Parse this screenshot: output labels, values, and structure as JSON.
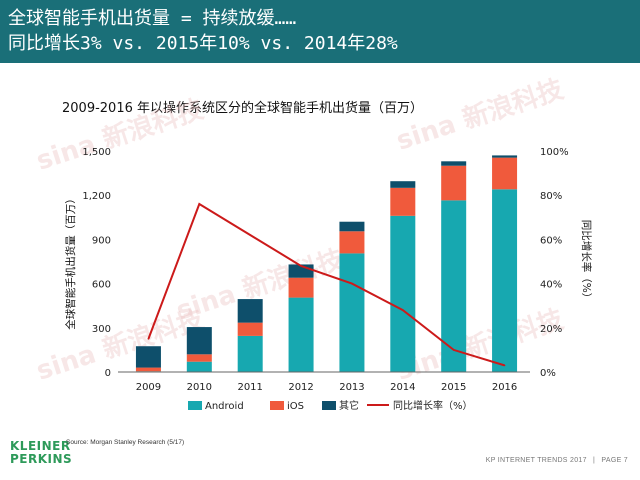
{
  "header": {
    "line1": "全球智能手机出货量 = 持续放缓……",
    "line2": "同比增长3% vs. 2015年10% vs. 2014年28%"
  },
  "chart_data": {
    "type": "bar",
    "title": "2009-2016 年以操作系统区分的全球智能手机出货量（百万）",
    "ylabel": "全球智能手机出货量（百万）",
    "y2label": "同比增长率（%）",
    "categories": [
      "2009",
      "2010",
      "2011",
      "2012",
      "2013",
      "2014",
      "2015",
      "2016"
    ],
    "ylim": [
      0,
      1500
    ],
    "yticks": [
      "0",
      "300",
      "600",
      "900",
      "1,200",
      "1,500"
    ],
    "y2lim": [
      0,
      100
    ],
    "y2ticks": [
      "0%",
      "20%",
      "40%",
      "60%",
      "80%",
      "100%"
    ],
    "stacked": true,
    "series": [
      {
        "name": "Android",
        "color": "#17a8b0",
        "values": [
          5,
          70,
          245,
          505,
          805,
          1060,
          1165,
          1240
        ]
      },
      {
        "name": "iOS",
        "color": "#f05a3c",
        "values": [
          25,
          50,
          90,
          135,
          150,
          190,
          235,
          215
        ]
      },
      {
        "name": "其它",
        "color": "#0e4f6b",
        "values": [
          145,
          185,
          160,
          90,
          65,
          45,
          30,
          15
        ]
      }
    ],
    "line_series": {
      "name": "同比增长率（%）",
      "color": "#cc1a1a",
      "axis": "right",
      "values": [
        15,
        76,
        62,
        48,
        40,
        28,
        10,
        3
      ]
    },
    "legend_position": "bottom"
  },
  "watermark": "sina 新浪科技",
  "logo": {
    "line1": "KLEINER",
    "line2": "PERKINS"
  },
  "source": "Source: Morgan Stanley Research (5/17)",
  "footer": {
    "left": "KP INTERNET TRENDS 2017",
    "sep": "|",
    "page": "PAGE 7"
  }
}
